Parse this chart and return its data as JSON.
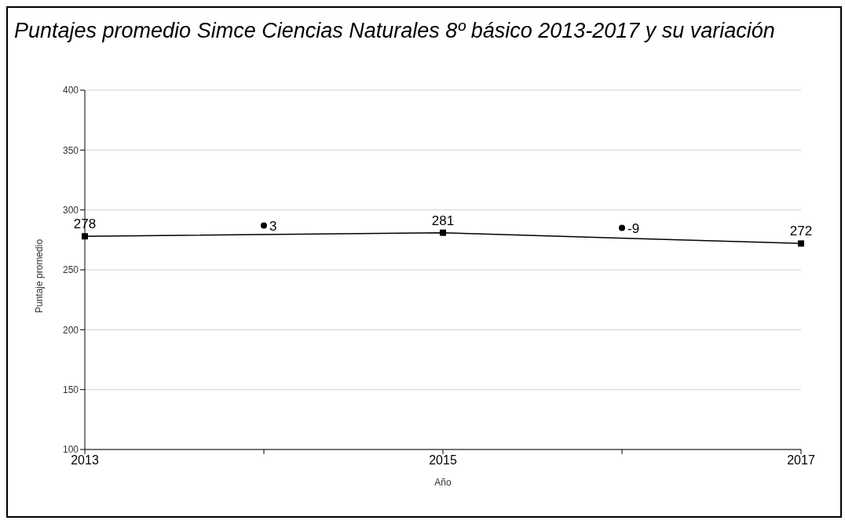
{
  "chart_data": {
    "type": "line",
    "title": "Puntajes promedio Simce Ciencias Naturales 8º básico 2013-2017 y su variación",
    "xlabel": "Año",
    "ylabel": "Puntaje promedio",
    "categories": [
      "2013",
      null,
      "2015",
      null,
      "2017"
    ],
    "series": [
      {
        "color": "#000000",
        "marker": "square",
        "values": [
          278,
          null,
          281,
          null,
          272
        ],
        "value_labels": [
          "278",
          null,
          "281",
          null,
          "272"
        ]
      },
      {
        "type": "scatter",
        "color": "#000000",
        "marker": "circle",
        "values": [
          null,
          287,
          null,
          285,
          null
        ]
      }
    ],
    "annotations": [
      "3",
      "-9"
    ],
    "ylim": [
      100,
      400
    ],
    "yticks": [
      100,
      150,
      200,
      250,
      300,
      350,
      400
    ],
    "grid": "y",
    "legend": false
  }
}
